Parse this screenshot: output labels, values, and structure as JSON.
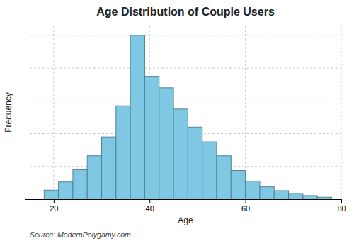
{
  "chart_data": {
    "type": "histogram",
    "title": "Age Distribution of Couple Users",
    "x_label": "Age",
    "y_label": "Frequency",
    "annotations": [
      "Source: ModernPolygamy.com"
    ],
    "bins": [
      18,
      21,
      24,
      27,
      30,
      33,
      36,
      39,
      42,
      45,
      48,
      51,
      54,
      57,
      60,
      63,
      66,
      69,
      72,
      75,
      78
    ],
    "values": [
      0.055,
      0.105,
      0.18,
      0.265,
      0.38,
      0.57,
      1.0,
      0.75,
      0.68,
      0.55,
      0.44,
      0.35,
      0.265,
      0.175,
      0.11,
      0.075,
      0.052,
      0.035,
      0.022,
      0.012
    ],
    "color": "#7EC8E3",
    "xlim": [
      15,
      80
    ],
    "xticks": [
      20,
      40,
      60,
      80
    ],
    "ylim": [
      0,
      1.06
    ],
    "yticks": [
      0,
      0.2,
      0.4,
      0.6,
      0.8,
      1.0
    ],
    "grid": true,
    "tick_labels": "x"
  }
}
